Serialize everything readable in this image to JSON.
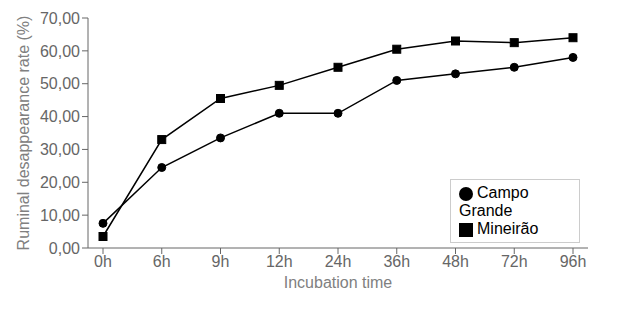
{
  "chart_data": {
    "type": "line",
    "x_label": "Incubation time",
    "y_label": "Ruminal desappearance rate (%)",
    "categories": [
      "0h",
      "6h",
      "9h",
      "12h",
      "24h",
      "36h",
      "48h",
      "72h",
      "96h"
    ],
    "series": [
      {
        "name": "Campo Grande",
        "color": "#000000",
        "marker": "circle",
        "values": [
          7.5,
          24.5,
          33.5,
          41.0,
          41.0,
          51.0,
          53.0,
          55.0,
          58.0
        ]
      },
      {
        "name": "Mineirão",
        "color": "#000000",
        "marker": "square",
        "values": [
          3.5,
          33.0,
          45.5,
          49.5,
          55.0,
          60.5,
          63.0,
          62.5,
          64.0
        ]
      }
    ],
    "ylim": [
      0,
      70
    ],
    "yticks": [
      {
        "value": 0,
        "label": "0,00"
      },
      {
        "value": 10,
        "label": "10,00"
      },
      {
        "value": 20,
        "label": "20,00"
      },
      {
        "value": 30,
        "label": "30,00"
      },
      {
        "value": 40,
        "label": "40,00"
      },
      {
        "value": 50,
        "label": "50,00"
      },
      {
        "value": 60,
        "label": "60,00"
      },
      {
        "value": 70,
        "label": "70,00"
      }
    ],
    "grid": false,
    "legend": "lower right"
  }
}
